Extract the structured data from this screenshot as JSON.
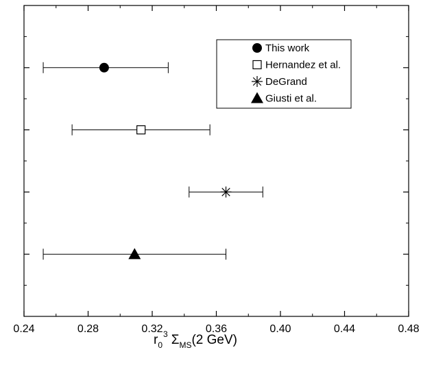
{
  "chart_data": {
    "type": "scatter",
    "xlabel": {
      "base": "r",
      "sub1": "0",
      "sup": "3",
      "sigma": "Σ",
      "sub2": "MS",
      "rest": "(2 GeV)"
    },
    "xlim": [
      0.24,
      0.48
    ],
    "xticks": [
      "0.24",
      "0.28",
      "0.32",
      "0.36",
      "0.40",
      "0.44",
      "0.48"
    ],
    "yticks_count": 4,
    "grid": false,
    "legend_position": "top-right",
    "series": [
      {
        "name": "This work",
        "marker": "filled-circle",
        "value": 0.29,
        "err_low": 0.252,
        "err_high": 0.33
      },
      {
        "name": "Hernandez et al.",
        "marker": "open-square",
        "value": 0.313,
        "err_low": 0.27,
        "err_high": 0.356
      },
      {
        "name": "DeGrand",
        "marker": "asterisk",
        "value": 0.366,
        "err_low": 0.343,
        "err_high": 0.389
      },
      {
        "name": "Giusti et al.",
        "marker": "filled-triangle",
        "value": 0.309,
        "err_low": 0.252,
        "err_high": 0.366
      }
    ]
  }
}
